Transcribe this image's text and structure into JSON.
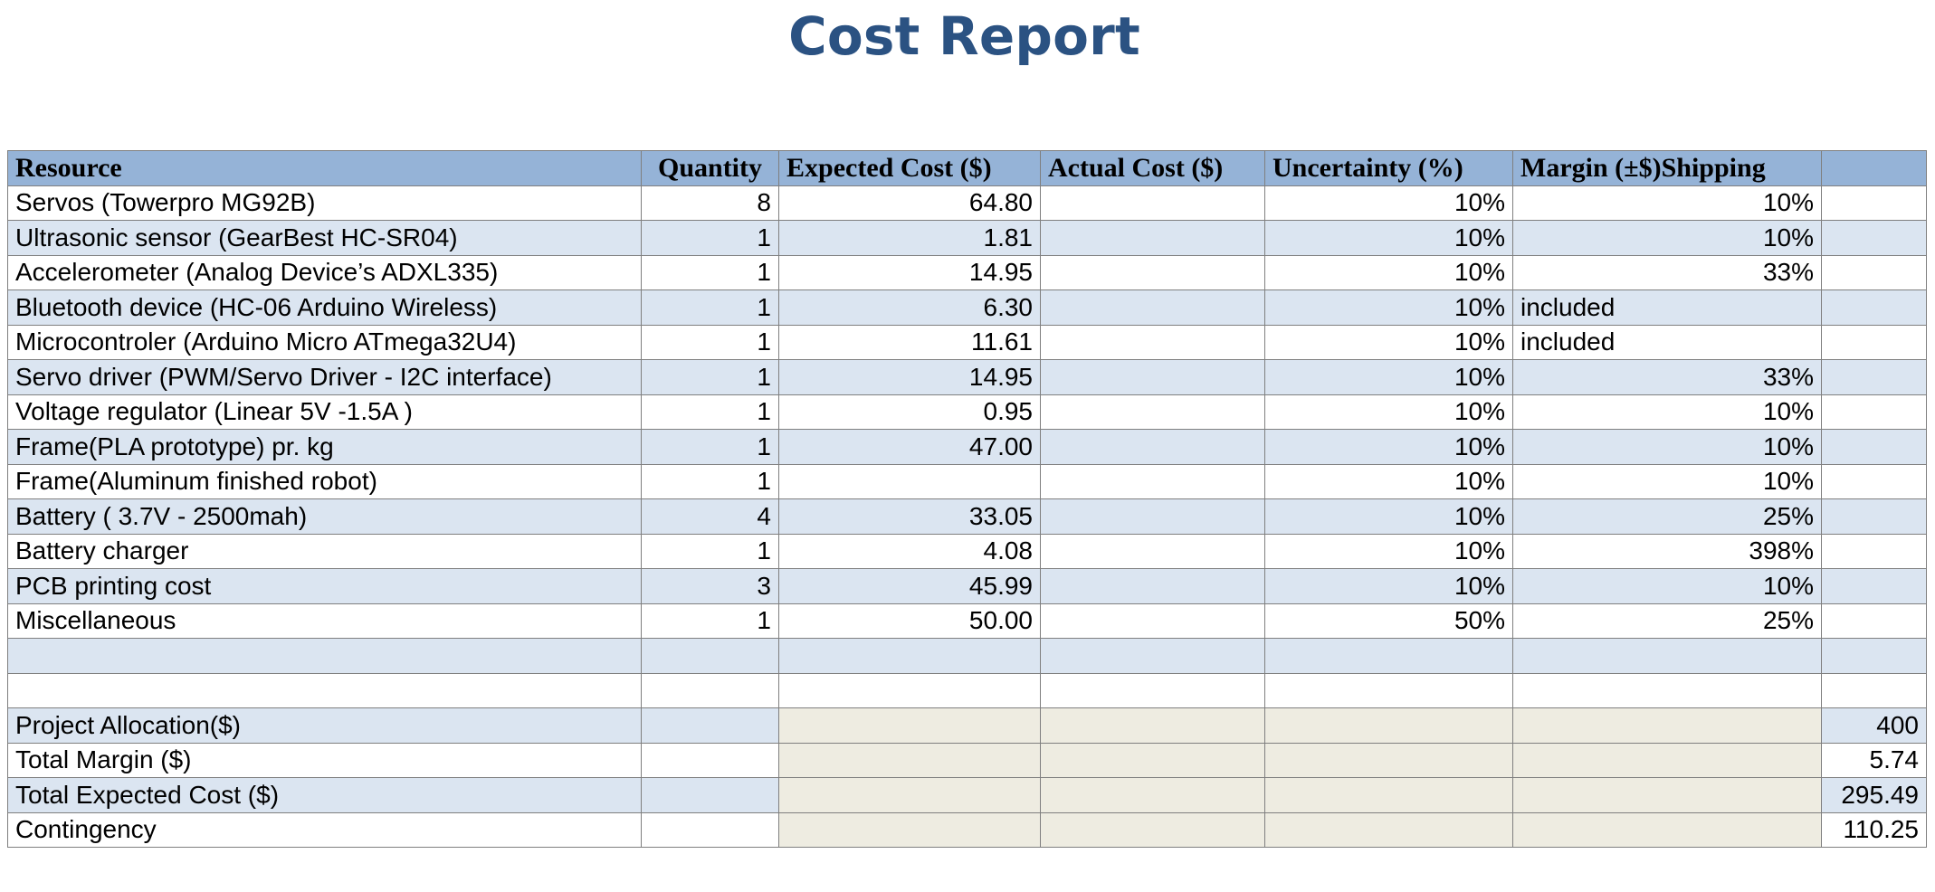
{
  "title": "Cost Report",
  "columns": [
    "Resource",
    "Quantity",
    "Expected Cost ($)",
    "Actual Cost ($)",
    "Uncertainty (%)",
    "Margin (±$)Shipping",
    ""
  ],
  "rows": [
    {
      "resource": "Servos (Towerpro MG92B)",
      "quantity": "8",
      "expected": "64.80",
      "actual": "",
      "uncertainty": "10%",
      "margin": "10%",
      "extra": ""
    },
    {
      "resource": "Ultrasonic sensor (GearBest HC-SR04)",
      "quantity": "1",
      "expected": "1.81",
      "actual": "",
      "uncertainty": "10%",
      "margin": "10%",
      "extra": ""
    },
    {
      "resource": "Accelerometer (Analog Device’s ADXL335)",
      "quantity": "1",
      "expected": "14.95",
      "actual": "",
      "uncertainty": "10%",
      "margin": "33%",
      "extra": ""
    },
    {
      "resource": "Bluetooth device (HC-06 Arduino Wireless)",
      "quantity": "1",
      "expected": "6.30",
      "actual": "",
      "uncertainty": "10%",
      "margin": "included",
      "extra": ""
    },
    {
      "resource": "Microcontroler (Arduino Micro ATmega32U4)",
      "quantity": "1",
      "expected": "11.61",
      "actual": "",
      "uncertainty": "10%",
      "margin": "included",
      "extra": ""
    },
    {
      "resource": "Servo driver (PWM/Servo Driver - I2C interface)",
      "quantity": "1",
      "expected": "14.95",
      "actual": "",
      "uncertainty": "10%",
      "margin": "33%",
      "extra": ""
    },
    {
      "resource": "Voltage regulator (Linear 5V -1.5A  )",
      "quantity": "1",
      "expected": "0.95",
      "actual": "",
      "uncertainty": "10%",
      "margin": "10%",
      "extra": ""
    },
    {
      "resource": "Frame(PLA prototype) pr. kg",
      "quantity": "1",
      "expected": "47.00",
      "actual": "",
      "uncertainty": "10%",
      "margin": "10%",
      "extra": ""
    },
    {
      "resource": "Frame(Aluminum finished robot)",
      "quantity": "1",
      "expected": "",
      "actual": "",
      "uncertainty": "10%",
      "margin": "10%",
      "extra": ""
    },
    {
      "resource": "Battery ( 3.7V - 2500mah)",
      "quantity": "4",
      "expected": "33.05",
      "actual": "",
      "uncertainty": "10%",
      "margin": "25%",
      "extra": ""
    },
    {
      "resource": "Battery charger",
      "quantity": "1",
      "expected": "4.08",
      "actual": "",
      "uncertainty": "10%",
      "margin": "398%",
      "extra": ""
    },
    {
      "resource": "PCB printing cost",
      "quantity": "3",
      "expected": "45.99",
      "actual": "",
      "uncertainty": "10%",
      "margin": "10%",
      "extra": ""
    },
    {
      "resource": "Miscellaneous",
      "quantity": "1",
      "expected": "50.00",
      "actual": "",
      "uncertainty": "50%",
      "margin": "25%",
      "extra": ""
    },
    {
      "resource": "",
      "quantity": "",
      "expected": "",
      "actual": "",
      "uncertainty": "",
      "margin": "",
      "extra": ""
    },
    {
      "resource": "",
      "quantity": "",
      "expected": "",
      "actual": "",
      "uncertainty": "",
      "margin": "",
      "extra": ""
    }
  ],
  "summary": [
    {
      "label": "Project Allocation($)",
      "value": "400"
    },
    {
      "label": "Total Margin ($)",
      "value": "5.74"
    },
    {
      "label": "Total Expected Cost ($)",
      "value": "295.49"
    },
    {
      "label": "Contingency",
      "value": "110.25"
    }
  ],
  "colors": {
    "title": "#2b5282",
    "header_bg": "#95b3d7",
    "band_bg": "#dbe5f1",
    "summary_fill": "#eeece1",
    "grid": "#7f7f7f"
  }
}
